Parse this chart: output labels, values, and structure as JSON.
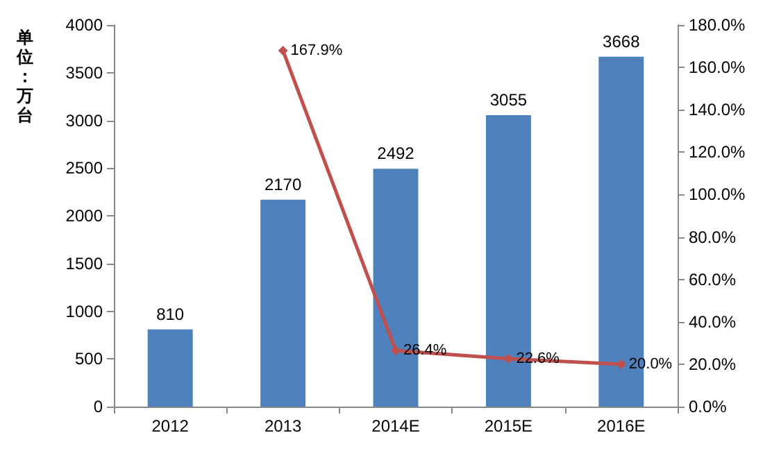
{
  "chart_data": {
    "type": "bar",
    "ylabel": "单位：万台",
    "categories": [
      "2012",
      "2013",
      "2014E",
      "2015E",
      "2016E"
    ],
    "series": [
      {
        "color": "#4f81bd",
        "values": [
          810,
          2170,
          2492,
          3055,
          3668
        ]
      },
      {
        "type": "line",
        "axis": "y2",
        "color": "#c0504d",
        "marker": "diamond",
        "values": [
          null,
          167.9,
          26.4,
          22.6,
          20.0
        ],
        "value_labels": [
          null,
          "167.9%",
          "26.4%",
          "22.6%",
          "20.0%"
        ]
      }
    ],
    "data_labels": true,
    "ylim": [
      0,
      4000
    ],
    "yticks": [
      0,
      500,
      1000,
      1500,
      2000,
      2500,
      3000,
      3500,
      4000
    ],
    "y2lim": [
      0,
      180
    ],
    "y2ticks": [
      {
        "value": 0,
        "label": "0.0%"
      },
      {
        "value": 20,
        "label": "20.0%"
      },
      {
        "value": 40,
        "label": "40.0%"
      },
      {
        "value": 60,
        "label": "60.0%"
      },
      {
        "value": 80,
        "label": "80.0%"
      },
      {
        "value": 100,
        "label": "100.0%"
      },
      {
        "value": 120,
        "label": "120.0%"
      },
      {
        "value": 140,
        "label": "140.0%"
      },
      {
        "value": 160,
        "label": "160.0%"
      },
      {
        "value": 180,
        "label": "180.0%"
      }
    ],
    "grid": false
  }
}
